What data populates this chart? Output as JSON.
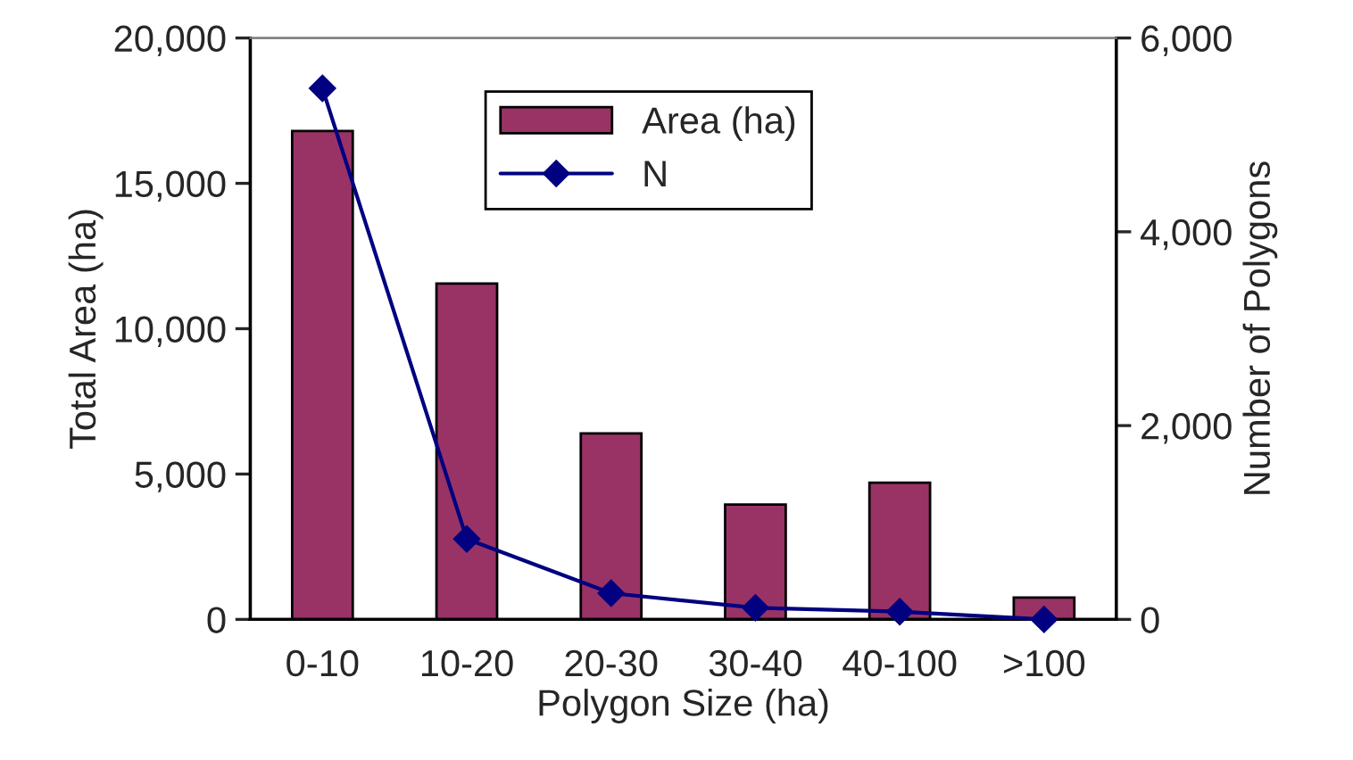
{
  "chart_data": {
    "type": "bar",
    "xlabel": "Polygon Size (ha)",
    "ylabel": "Total Area (ha)",
    "y2label": "Number of Polygons",
    "categories": [
      "0-10",
      "10-20",
      "20-30",
      "30-40",
      "40-100",
      ">100"
    ],
    "series": [
      {
        "name": "Area (ha)",
        "color": "#993366",
        "values": [
          16800,
          11550,
          6400,
          3950,
          4700,
          750
        ]
      },
      {
        "name": "N",
        "type": "line",
        "axis": "y2",
        "color": "#000080",
        "marker": "diamond",
        "values": [
          5480,
          830,
          270,
          120,
          80,
          0
        ]
      }
    ],
    "ylim": [
      0,
      20000
    ],
    "yticks": [
      {
        "value": 0,
        "label": "0"
      },
      {
        "value": 5000,
        "label": "5,000"
      },
      {
        "value": 10000,
        "label": "10,000"
      },
      {
        "value": 15000,
        "label": "15,000"
      },
      {
        "value": 20000,
        "label": "20,000"
      }
    ],
    "y2lim": [
      0,
      6000
    ],
    "y2ticks": [
      {
        "value": 0,
        "label": "0"
      },
      {
        "value": 2000,
        "label": "2,000"
      },
      {
        "value": 4000,
        "label": "4,000"
      },
      {
        "value": 6000,
        "label": "6,000"
      }
    ],
    "legend": "top",
    "grid": false
  }
}
